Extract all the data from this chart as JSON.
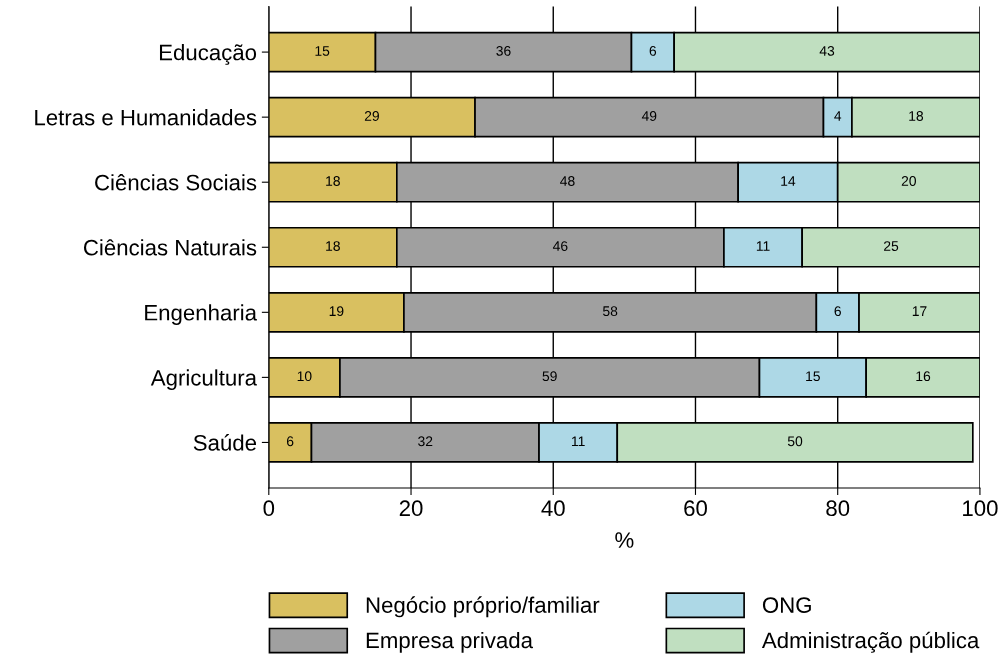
{
  "chart_data": {
    "type": "bar",
    "orientation": "horizontal",
    "stacked": true,
    "categories": [
      "Educação",
      "Letras e Humanidades",
      "Ciências Sociais",
      "Ciências Naturais",
      "Engenharia",
      "Agricultura",
      "Saúde"
    ],
    "series": [
      {
        "name": "Negócio próprio/familiar",
        "color": "#d9c060",
        "values": [
          15,
          29,
          18,
          18,
          19,
          10,
          6
        ]
      },
      {
        "name": "Empresa privada",
        "color": "#a0a0a0",
        "values": [
          36,
          49,
          48,
          46,
          58,
          59,
          32
        ]
      },
      {
        "name": "ONG",
        "color": "#add8e6",
        "values": [
          6,
          4,
          14,
          11,
          6,
          15,
          11
        ]
      },
      {
        "name": "Administração pública",
        "color": "#c0dfc0",
        "values": [
          43,
          18,
          20,
          25,
          17,
          16,
          50
        ]
      }
    ],
    "xlabel": "%",
    "xlim": [
      0,
      100
    ],
    "xticks": [
      0,
      20,
      40,
      60,
      80,
      100
    ],
    "grid": "x",
    "legend": "bottom",
    "data_labels": true
  }
}
